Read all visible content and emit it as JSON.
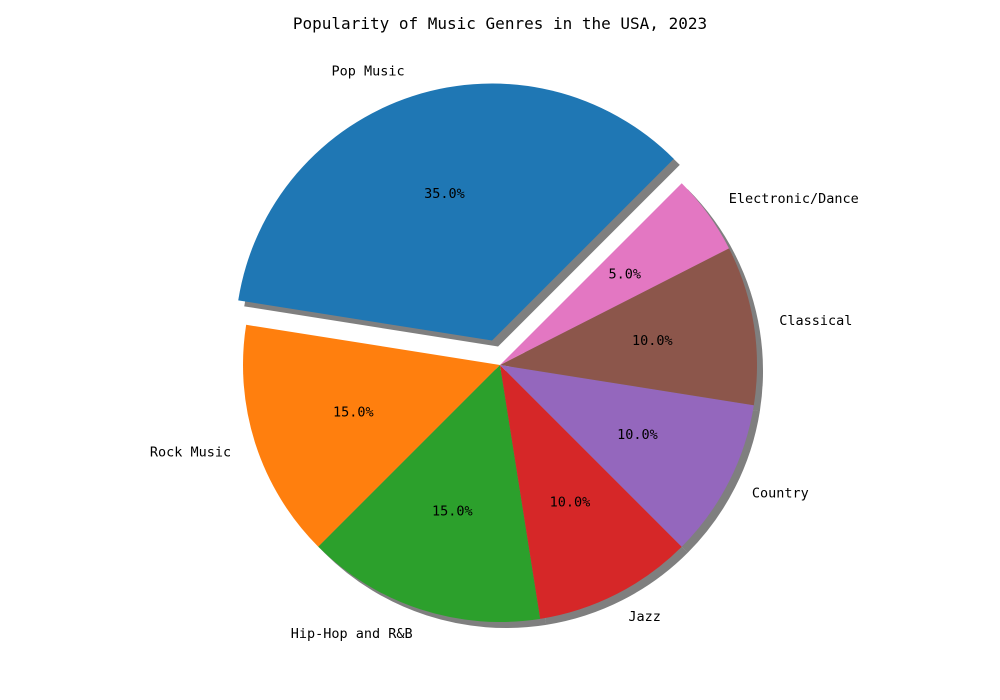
{
  "chart_data": {
    "type": "pie",
    "title": "Popularity of Music Genres in the USA, 2023",
    "labels": [
      "Pop Music",
      "Rock Music",
      "Hip-Hop and R&B",
      "Jazz",
      "Country",
      "Classical",
      "Electronic/Dance"
    ],
    "values": [
      35,
      15,
      15,
      10,
      10,
      10,
      5
    ],
    "value_format": "%1.1f%%",
    "colors": [
      "#1f77b4",
      "#ff7f0e",
      "#2ca02c",
      "#d62728",
      "#9467bd",
      "#8c564b",
      "#e377c2"
    ],
    "explode": [
      0.1,
      0,
      0,
      0,
      0,
      0,
      0
    ],
    "shadow": true,
    "start_angle_deg": 45,
    "direction": "counterclockwise",
    "legend": false
  }
}
